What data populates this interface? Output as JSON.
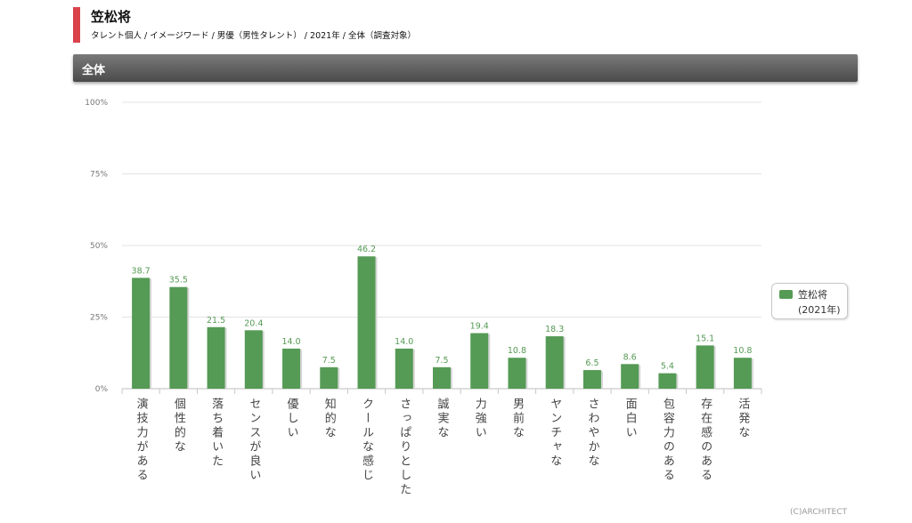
{
  "header": {
    "title": "笠松将",
    "subtitle": "タレント個人 / イメージワード / 男優（男性タレント）  / 2021年 / 全体（調査対象）"
  },
  "section": {
    "title": "全体"
  },
  "legend": {
    "name": "笠松将",
    "year": "(2021年)"
  },
  "credit": "(C)ARCHITECT",
  "colors": {
    "bar": "#559a55",
    "label": "#559a55",
    "grid": "#e3e3e3"
  },
  "chart_data": {
    "type": "bar",
    "categories": [
      "演技力がある",
      "個性的な",
      "落ち着いた",
      "センスが良い",
      "優しい",
      "知的な",
      "クールな感じ",
      "さっぱりとした",
      "誠実な",
      "力強い",
      "男前な",
      "ヤンチャな",
      "さわやかな",
      "面白い",
      "包容力のある",
      "存在感のある",
      "活発な"
    ],
    "series": [
      {
        "name": "笠松将 (2021年)",
        "values": [
          38.7,
          35.5,
          21.5,
          20.4,
          14.0,
          7.5,
          46.2,
          14.0,
          7.5,
          19.4,
          10.8,
          18.3,
          6.5,
          8.6,
          5.4,
          15.1,
          10.8
        ]
      }
    ],
    "value_labels": [
      "38.7",
      "35.5",
      "21.5",
      "20.4",
      "14.0",
      "7.5",
      "46.2",
      "14.0",
      "7.5",
      "19.4",
      "10.8",
      "18.3",
      "6.5",
      "8.6",
      "5.4",
      "15.1",
      "10.8"
    ],
    "yticks": [
      0,
      25,
      50,
      75,
      100
    ],
    "ytick_labels": [
      "0%",
      "25%",
      "50%",
      "75%",
      "100%"
    ],
    "ylim": [
      0,
      100
    ],
    "grid": true,
    "legend_position": "right"
  }
}
